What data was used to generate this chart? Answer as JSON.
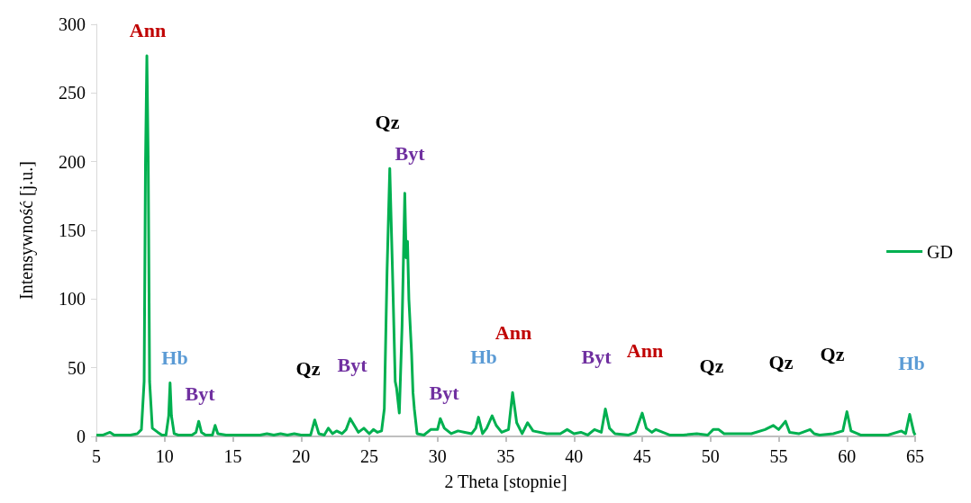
{
  "chart_data": {
    "type": "line",
    "xlabel": "2 Theta [stopnie]",
    "ylabel": "Intensywność [j.u.]",
    "xlim": [
      5,
      65
    ],
    "xticks": [
      5,
      10,
      15,
      20,
      25,
      30,
      35,
      40,
      45,
      50,
      55,
      60,
      65
    ],
    "ylim": [
      0,
      300
    ],
    "yticks": [
      0,
      50,
      100,
      150,
      200,
      250,
      300
    ],
    "grid": false,
    "legend": "right",
    "marker": "none",
    "line_style": "solid",
    "series": [
      {
        "name": "GD",
        "color": "#00b050",
        "x": [
          5,
          5.5,
          6,
          6.3,
          6.6,
          7,
          7.5,
          8,
          8.3,
          8.5,
          8.6,
          8.7,
          8.8,
          8.9,
          9.1,
          9.5,
          9.8,
          10.1,
          10.3,
          10.4,
          10.5,
          10.7,
          11,
          12,
          12.3,
          12.5,
          12.7,
          13,
          13.5,
          13.7,
          13.9,
          14.5,
          15,
          16,
          17,
          17.5,
          18,
          18.5,
          19,
          19.5,
          20,
          20.7,
          21,
          21.3,
          21.7,
          22,
          22.3,
          22.6,
          23,
          23.3,
          23.6,
          23.9,
          24.2,
          24.6,
          25,
          25.3,
          25.6,
          25.9,
          26.1,
          26.3,
          26.5,
          26.7,
          26.9,
          27.0,
          27.2,
          27.4,
          27.6,
          27.7,
          27.8,
          27.9,
          28.1,
          28.2,
          28.3,
          28.5,
          29,
          29.5,
          30,
          30.2,
          30.5,
          31,
          31.5,
          32,
          32.5,
          32.8,
          33,
          33.3,
          33.6,
          34,
          34.3,
          34.7,
          35.2,
          35.5,
          35.8,
          36.2,
          36.6,
          37,
          38,
          39,
          39.5,
          40,
          40.5,
          41,
          41.5,
          42,
          42.3,
          42.6,
          43,
          44,
          44.5,
          45,
          45.3,
          45.7,
          46,
          47,
          48,
          49,
          49.8,
          50.2,
          50.6,
          51,
          52,
          53,
          54,
          54.6,
          55,
          55.5,
          55.8,
          56.5,
          57.3,
          57.6,
          58,
          59,
          59.7,
          60,
          60.3,
          61,
          62,
          63,
          64,
          64.3,
          64.6,
          64.9,
          65
        ],
        "values": [
          1,
          1,
          3,
          1,
          1,
          1,
          1,
          2,
          5,
          40,
          200,
          277,
          200,
          40,
          6,
          3,
          1,
          1,
          15,
          39,
          15,
          2,
          1,
          1,
          3,
          11,
          3,
          1,
          1,
          8,
          2,
          1,
          1,
          1,
          1,
          2,
          1,
          2,
          1,
          2,
          1,
          1,
          12,
          2,
          1,
          6,
          2,
          4,
          2,
          5,
          13,
          8,
          3,
          6,
          2,
          5,
          3,
          4,
          20,
          120,
          195,
          120,
          40,
          35,
          17,
          80,
          177,
          130,
          142,
          100,
          60,
          32,
          20,
          2,
          1,
          5,
          5,
          13,
          6,
          2,
          4,
          3,
          2,
          6,
          14,
          2,
          6,
          15,
          8,
          3,
          5,
          32,
          10,
          2,
          10,
          4,
          2,
          2,
          5,
          2,
          3,
          1,
          5,
          3,
          20,
          6,
          2,
          1,
          3,
          17,
          6,
          3,
          5,
          1,
          1,
          2,
          1,
          5,
          5,
          2,
          2,
          2,
          5,
          8,
          5,
          11,
          3,
          2,
          5,
          2,
          1,
          2,
          4,
          18,
          4,
          1,
          1,
          1,
          4,
          2,
          16,
          3,
          1
        ]
      }
    ],
    "annotations": [
      "Ann",
      "Hb",
      "Byt",
      "Qz",
      "Byt",
      "Qz",
      "Byt",
      "Byt",
      "Hb",
      "Ann",
      "Byt",
      "Ann",
      "Qz",
      "Qz",
      "Qz",
      "Hb"
    ]
  }
}
